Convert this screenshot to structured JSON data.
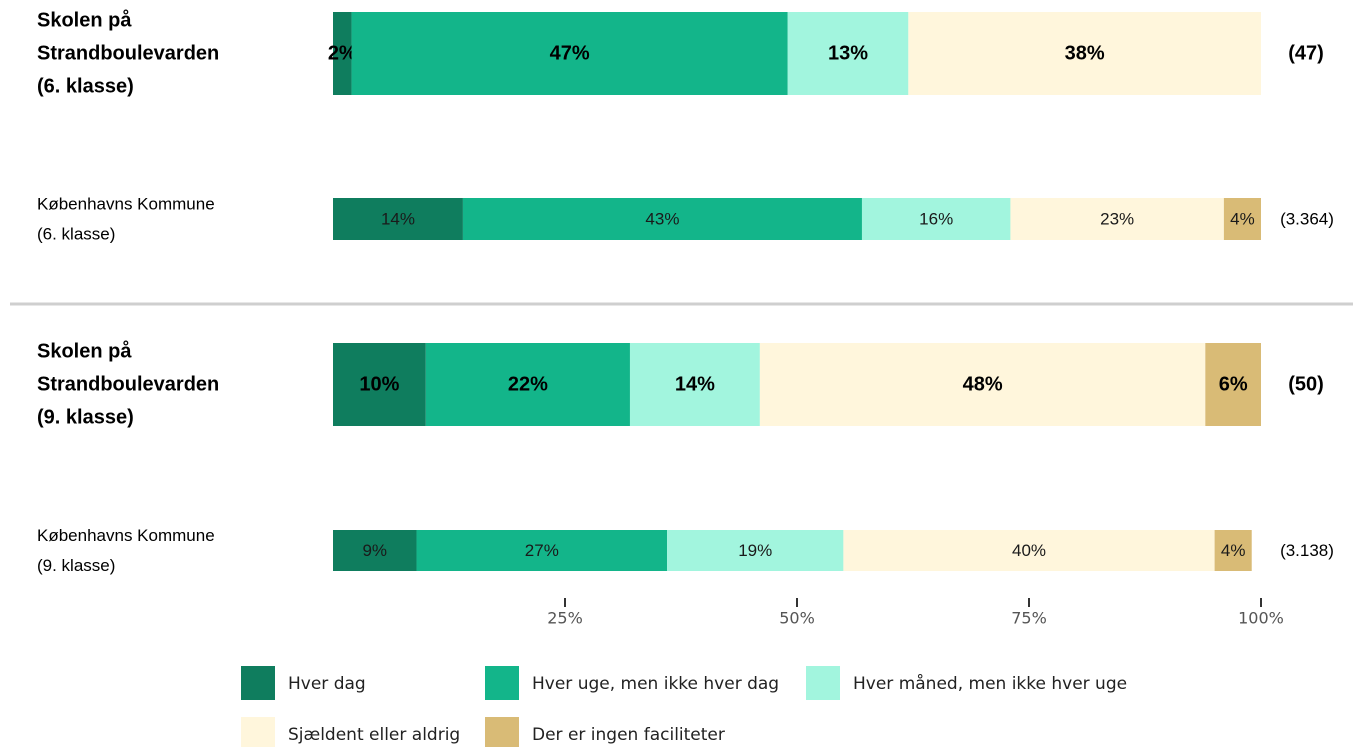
{
  "chart_data": {
    "type": "bar",
    "orientation": "horizontal",
    "stacked": true,
    "title": "",
    "xlabel": "",
    "ylabel": "",
    "xlim": [
      0,
      100
    ],
    "x_ticks": [
      "25%",
      "50%",
      "75%",
      "100%"
    ],
    "legend_position": "bottom",
    "categories": [
      {
        "label_lines": [
          "Skolen på",
          "Strandboulevarden",
          "(6. klasse)"
        ],
        "n": "(47)",
        "bold": true
      },
      {
        "label_lines": [
          "Københavns Kommune",
          "(6. klasse)"
        ],
        "n": "(3.364)",
        "bold": false
      },
      {
        "label_lines": [
          "Skolen på",
          "Strandboulevarden",
          "(9. klasse)"
        ],
        "n": "(50)",
        "bold": true
      },
      {
        "label_lines": [
          "Københavns Kommune",
          "(9. klasse)"
        ],
        "n": "(3.138)",
        "bold": false
      }
    ],
    "series": [
      {
        "name": "Hver dag",
        "color": "#0f7d5e",
        "values": [
          2,
          14,
          10,
          9
        ]
      },
      {
        "name": "Hver uge, men ikke hver dag",
        "color": "#13b58a",
        "values": [
          47,
          43,
          22,
          27
        ]
      },
      {
        "name": "Hver måned, men ikke hver uge",
        "color": "#a2f5de",
        "values": [
          13,
          16,
          14,
          19
        ]
      },
      {
        "name": "Sjældent eller aldrig",
        "color": "#fff6dc",
        "values": [
          38,
          23,
          48,
          40
        ]
      },
      {
        "name": "Der er ingen faciliteter",
        "color": "#d9bb76",
        "values": [
          0,
          4,
          6,
          4
        ]
      }
    ],
    "value_format": "{v}%"
  }
}
